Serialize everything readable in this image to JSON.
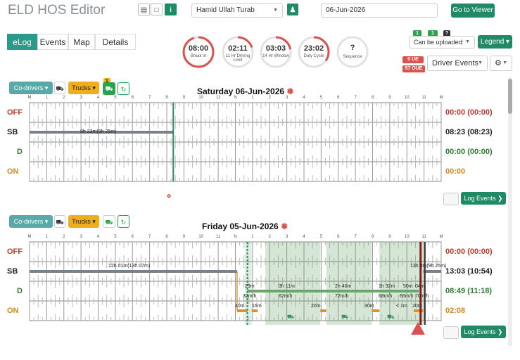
{
  "header": {
    "title": "ELD HOS Editor",
    "driver": "Hamid Ullah Turab",
    "date": "06-Jun-2026",
    "go_viewer": "Go to Viewer"
  },
  "tabs": [
    "eLog",
    "Events",
    "Map",
    "Details"
  ],
  "gauges": [
    {
      "value": "08:00",
      "label": "Break In",
      "progress": 0.95,
      "color": "#d9534f"
    },
    {
      "value": "02:11",
      "label": "11 Hr Driving Limit",
      "progress": 0.2,
      "color": "#d9534f"
    },
    {
      "value": "03:03",
      "label": "14 Hr Window",
      "progress": 0.22,
      "color": "#d9534f"
    },
    {
      "value": "23:02",
      "label": "Duty Cycle",
      "progress": 0.35,
      "color": "#d9534f"
    },
    {
      "value": "?",
      "label": "Sequence",
      "progress": 0,
      "color": "#d9534f"
    }
  ],
  "right": {
    "upload_counts": [
      "1",
      "1",
      "?"
    ],
    "upload_select": "Can be uploaded:",
    "legend": "Legend",
    "ue_badge": "0 UE",
    "oue_badge": "57 OUE",
    "driver_events": "Driver Events"
  },
  "controls": {
    "codrivers": "Co-drivers",
    "trucks": "Trucks",
    "alert_count": "1",
    "log_events": "Log Events"
  },
  "rows": [
    "OFF",
    "SB",
    "D",
    "ON"
  ],
  "hour_labels": [
    "M",
    "1",
    "2",
    "3",
    "4",
    "5",
    "6",
    "7",
    "8",
    "9",
    "10",
    "11",
    "N",
    "1",
    "2",
    "3",
    "4",
    "5",
    "6",
    "7",
    "8",
    "9",
    "10",
    "11",
    "M"
  ],
  "day1": {
    "title": "Saturday 06-Jun-2026",
    "totals": [
      "00:00 (00:00)",
      "08:23 (08:23)",
      "00:00 (00:00)",
      "00:00"
    ],
    "sb_label": "8h 23m(9h 25m)"
  },
  "day2": {
    "title": "Friday 05-Jun-2026",
    "totals": [
      "00:00 (00:00)",
      "13:03 (10:54)",
      "08:49 (11:18)",
      "02:08"
    ],
    "sb_label": "12h 01m(13h 07m)",
    "sb_label2": "13h 0m(9h 25m)",
    "d_labels": [
      "29m",
      "3h 11m",
      "2h 40m",
      "1h 32m",
      "50m",
      "04m"
    ],
    "speed_labels": [
      "32m/h",
      "62m/h",
      "72m/h",
      "68m/h",
      "66m/h",
      "70m/h"
    ],
    "on_labels": [
      "40m",
      "16m",
      "20m",
      "30m",
      "< 1m",
      "20m"
    ]
  }
}
